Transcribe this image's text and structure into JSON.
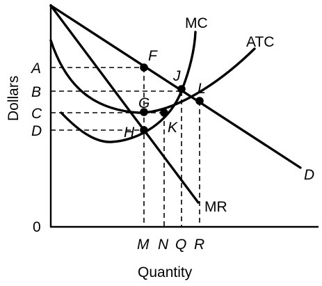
{
  "diagram": {
    "axes": {
      "y_title": "Dollars",
      "x_title": "Quantity",
      "origin_label": "0"
    },
    "price_levels": [
      {
        "id": "A",
        "label": "A"
      },
      {
        "id": "B",
        "label": "B"
      },
      {
        "id": "C",
        "label": "C"
      },
      {
        "id": "D",
        "label": "D"
      }
    ],
    "quantity_levels": [
      {
        "id": "M",
        "label": "M"
      },
      {
        "id": "N",
        "label": "N"
      },
      {
        "id": "Q",
        "label": "Q"
      },
      {
        "id": "R",
        "label": "R"
      }
    ],
    "curves": [
      {
        "id": "demand",
        "label": "D"
      },
      {
        "id": "mr",
        "label": "MR"
      },
      {
        "id": "mc",
        "label": "MC"
      },
      {
        "id": "atc",
        "label": "ATC"
      }
    ],
    "points": [
      {
        "id": "F",
        "label": "F"
      },
      {
        "id": "G",
        "label": "G"
      },
      {
        "id": "H",
        "label": "H"
      },
      {
        "id": "J",
        "label": "J"
      },
      {
        "id": "K",
        "label": "K"
      },
      {
        "id": "L",
        "label": "L"
      }
    ]
  }
}
